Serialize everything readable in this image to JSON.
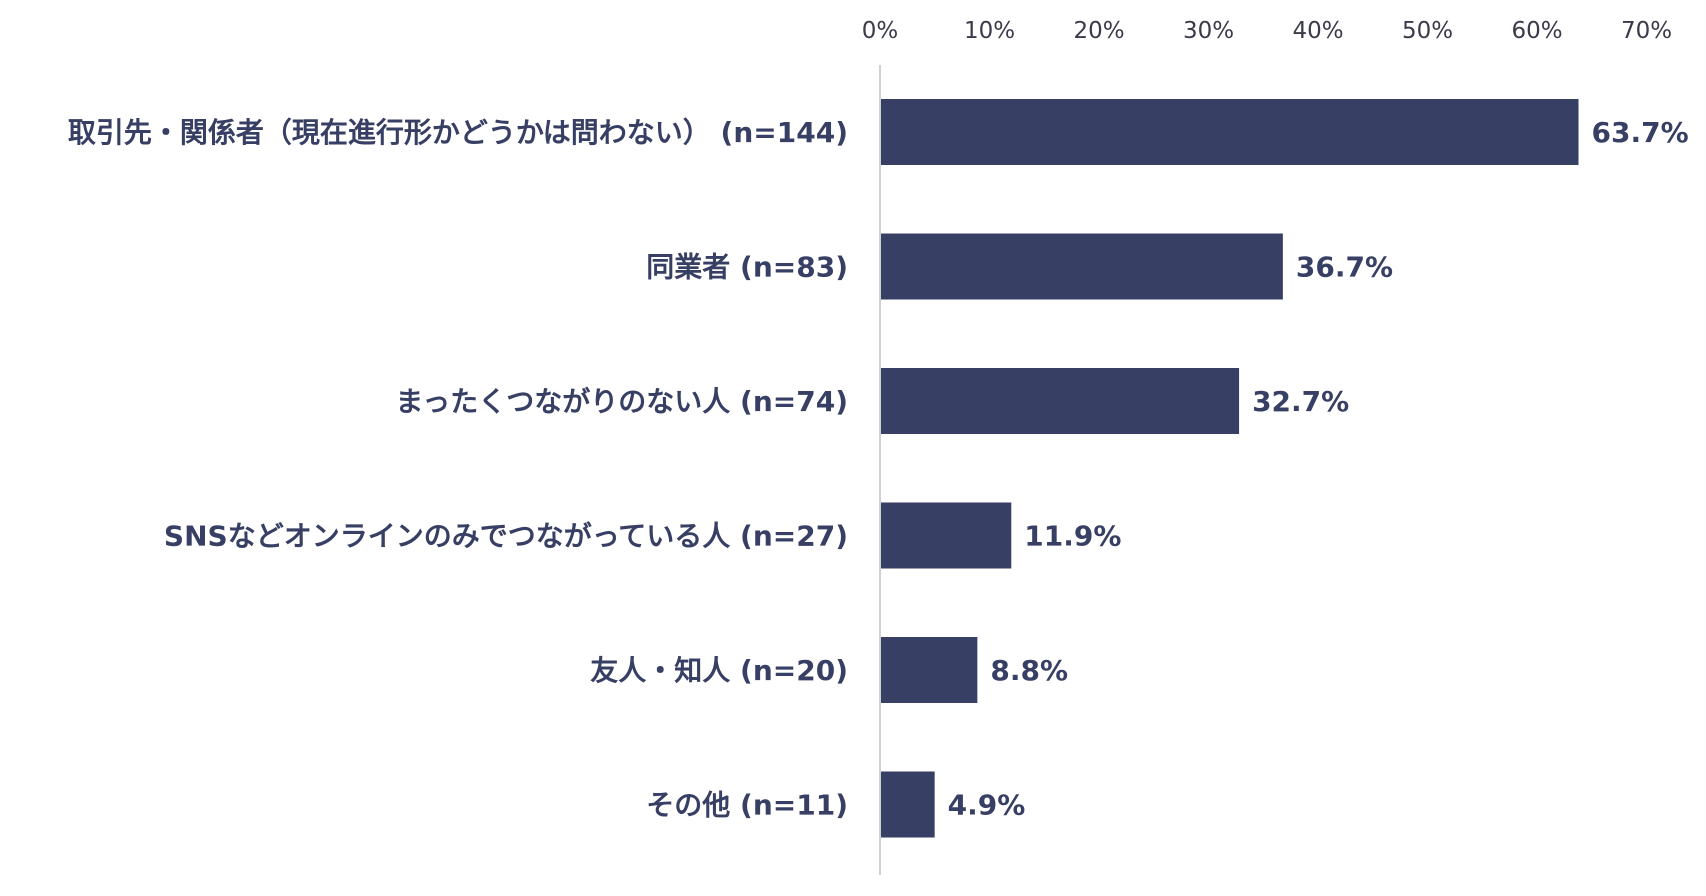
{
  "chart_data": {
    "type": "bar",
    "orientation": "horizontal",
    "categories": [
      "取引先・関係者（現在進行形かどうかは問わない） (n=144)",
      "同業者 (n=83)",
      "まったくつながりのない人 (n=74)",
      "SNSなどオンラインのみでつながっている人 (n=27)",
      "友人・知人 (n=20)",
      "その他 (n=11)"
    ],
    "values": [
      63.7,
      36.7,
      32.7,
      11.9,
      8.8,
      4.9
    ],
    "value_labels": [
      "63.7%",
      "36.7%",
      "32.7%",
      "11.9%",
      "8.8%",
      "4.9%"
    ],
    "x_ticks": [
      "0%",
      "10%",
      "20%",
      "30%",
      "40%",
      "50%",
      "60%",
      "70%"
    ],
    "xlim": [
      0,
      70
    ],
    "x_axis_position": "top",
    "grid": false,
    "legend": "none",
    "colors": {
      "bar": "#383f64",
      "axis": "#d0d0d0",
      "text": "#383f64",
      "tick_text": "#3a3a4a"
    }
  }
}
